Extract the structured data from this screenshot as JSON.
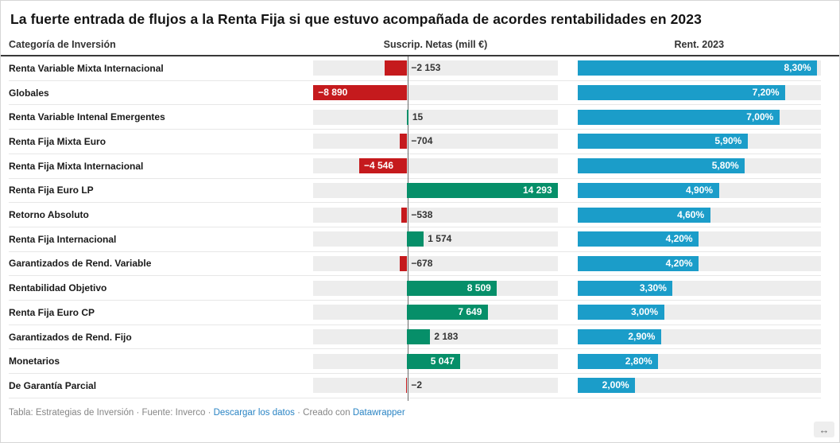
{
  "title": "La fuerte entrada de flujos a la Renta Fija si que estuvo acompañada de acordes rentabilidades  en 2023",
  "header": {
    "category": "Categoría de Inversión",
    "flows": "Suscrip. Netas (mill €)",
    "returns": "Rent. 2023"
  },
  "colors": {
    "positive": "#068f69",
    "negative": "#c51a1d",
    "rent": "#1b9dc9",
    "track": "#ededed",
    "link": "#2a84c4"
  },
  "chart_data": {
    "type": "bar",
    "title": "La fuerte entrada de flujos a la Renta Fija si que estuvo acompañada de acordes rentabilidades  en 2023",
    "columns": [
      "Categoría de Inversión",
      "Suscrip. Netas (mill €)",
      "Rent. 2023"
    ],
    "flows_axis": {
      "min": -8890,
      "max": 14293
    },
    "returns_axis": {
      "min": 0,
      "max": 8.45
    },
    "rows": [
      {
        "category": "Renta Variable Mixta Internacional",
        "flow": -2153,
        "flow_label": "−2 153",
        "rent": 8.3,
        "rent_label": "8,30%"
      },
      {
        "category": "Globales",
        "flow": -8890,
        "flow_label": "−8 890",
        "rent": 7.2,
        "rent_label": "7,20%"
      },
      {
        "category": "Renta Variable Intenal Emergentes",
        "flow": 15,
        "flow_label": "15",
        "rent": 7.0,
        "rent_label": "7,00%"
      },
      {
        "category": "Renta Fija Mixta Euro",
        "flow": -704,
        "flow_label": "−704",
        "rent": 5.9,
        "rent_label": "5,90%"
      },
      {
        "category": "Renta Fija Mixta Internacional",
        "flow": -4546,
        "flow_label": "−4 546",
        "rent": 5.8,
        "rent_label": "5,80%"
      },
      {
        "category": "Renta Fija Euro LP",
        "flow": 14293,
        "flow_label": "14 293",
        "rent": 4.9,
        "rent_label": "4,90%"
      },
      {
        "category": "Retorno Absoluto",
        "flow": -538,
        "flow_label": "−538",
        "rent": 4.6,
        "rent_label": "4,60%"
      },
      {
        "category": "Renta Fija Internacional",
        "flow": 1574,
        "flow_label": "1 574",
        "rent": 4.2,
        "rent_label": "4,20%"
      },
      {
        "category": "Garantizados de Rend. Variable",
        "flow": -678,
        "flow_label": "−678",
        "rent": 4.2,
        "rent_label": "4,20%"
      },
      {
        "category": "Rentabilidad Objetivo",
        "flow": 8509,
        "flow_label": "8 509",
        "rent": 3.3,
        "rent_label": "3,30%"
      },
      {
        "category": "Renta Fija Euro CP",
        "flow": 7649,
        "flow_label": "7 649",
        "rent": 3.0,
        "rent_label": "3,00%"
      },
      {
        "category": "Garantizados de Rend. Fijo",
        "flow": 2183,
        "flow_label": "2 183",
        "rent": 2.9,
        "rent_label": "2,90%"
      },
      {
        "category": "Monetarios",
        "flow": 5047,
        "flow_label": "5 047",
        "rent": 2.8,
        "rent_label": "2,80%"
      },
      {
        "category": "De Garantía Parcial",
        "flow": -2,
        "flow_label": "−2",
        "rent": 2.0,
        "rent_label": "2,00%"
      }
    ]
  },
  "footer": {
    "attribution": "Tabla: Estrategias de Inversión · Fuente: Inverco ·",
    "download_link": "Descargar los datos",
    "separator": "·",
    "created_with": "Creado con",
    "datawrapper_link": "Datawrapper"
  },
  "resize_icon": "↔"
}
